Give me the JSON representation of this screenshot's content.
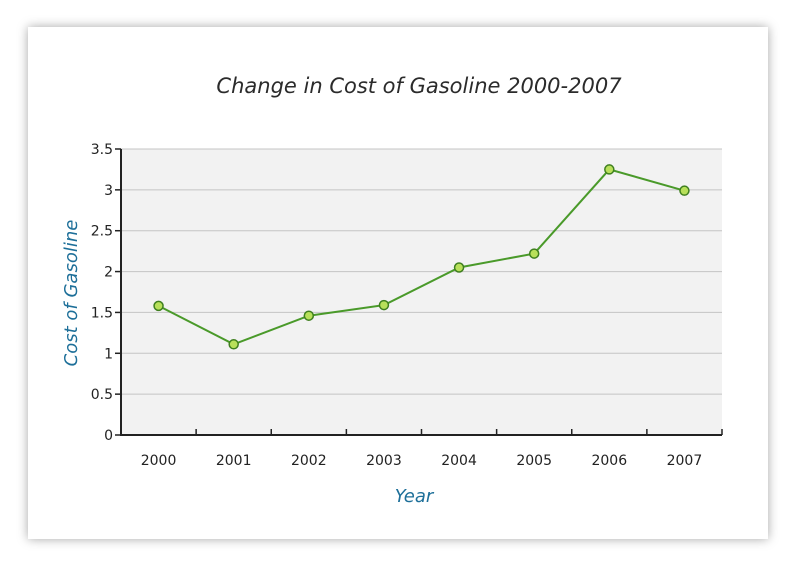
{
  "chart_data": {
    "type": "line",
    "title": "Change in Cost of Gasoline 2000-2007",
    "xlabel": "Year",
    "ylabel": "Cost of Gasoline",
    "categories": [
      "2000",
      "2001",
      "2002",
      "2003",
      "2004",
      "2005",
      "2006",
      "2007"
    ],
    "values": [
      1.58,
      1.11,
      1.46,
      1.59,
      2.05,
      2.22,
      3.25,
      2.99
    ],
    "ylim": [
      0,
      3.5
    ],
    "yticks": [
      "0",
      "0.5",
      "1",
      "1.5",
      "2",
      "2.5",
      "3",
      "3.5"
    ],
    "grid": true,
    "colors": {
      "line": "#4a9a2a",
      "marker_fill": "#b8e05a",
      "marker_stroke": "#3f7f1f",
      "plot_background": "#f2f2f2",
      "gridline": "#c4c4c4",
      "axis_label": "#1d6f99"
    }
  }
}
